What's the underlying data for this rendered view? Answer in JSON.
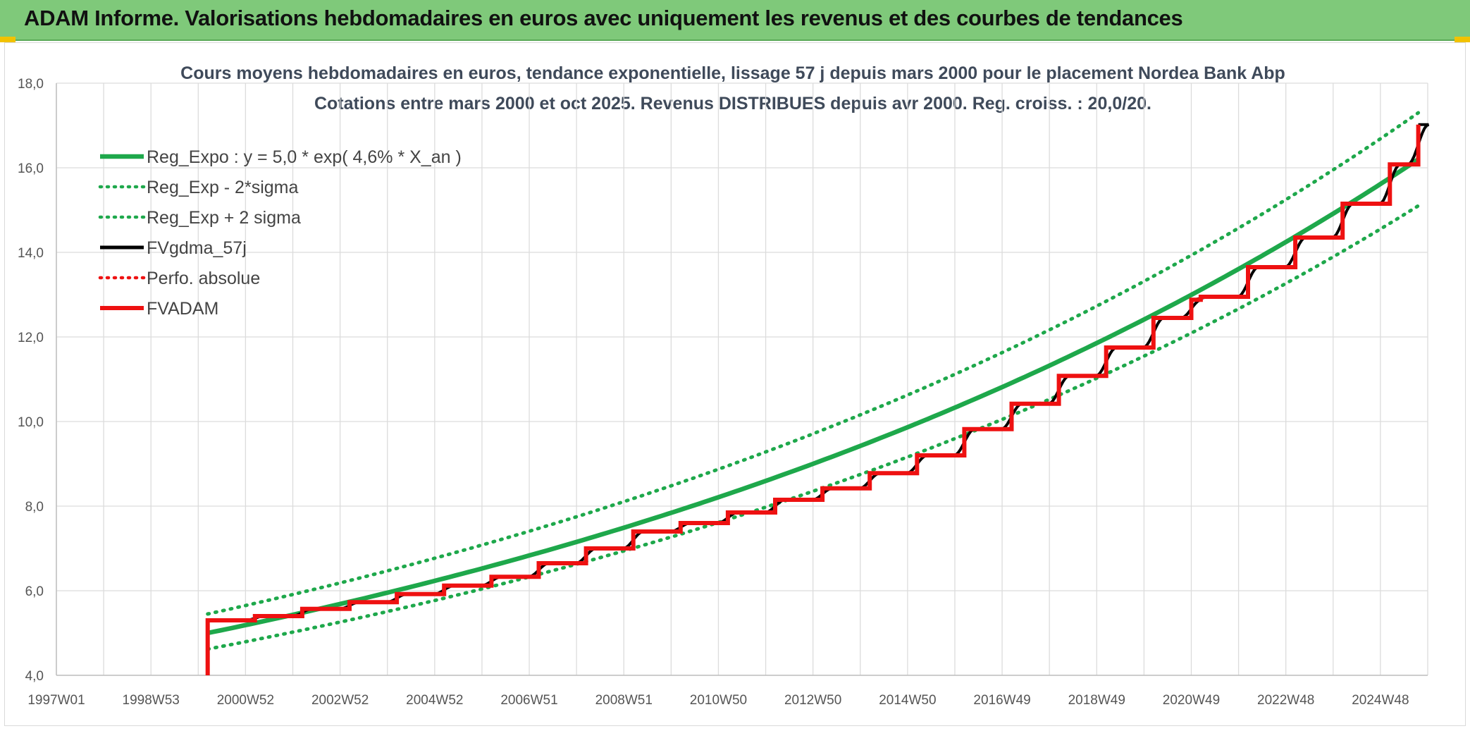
{
  "header": {
    "title": "ADAM Informe. Valorisations hebdomadaires en euros avec uniquement les revenus et des courbes de tendances"
  },
  "colors": {
    "header_bg": "#7fc97a",
    "trend": "#1ea84b",
    "fvgdma": "#000000",
    "fvadam": "#ee1111",
    "perfo": "#ee1111"
  },
  "chart_data": {
    "type": "line",
    "title": "Cours moyens hebdomadaires en euros, tendance exponentielle, lissage 57 j depuis mars 2000 pour le placement Nordea Bank Abp",
    "subtitle": "Cotations entre mars 2000 et oct 2025. Revenus DISTRIBUES depuis avr 2000. Reg. croiss. : 20,0/20.",
    "xlabel": "",
    "ylabel": "",
    "x_ticks": [
      "1997W01",
      "1998W53",
      "2000W52",
      "2002W52",
      "2004W52",
      "2006W51",
      "2008W51",
      "2010W50",
      "2012W50",
      "2014W50",
      "2016W49",
      "2018W49",
      "2020W49",
      "2022W48",
      "2024W48"
    ],
    "x_range": [
      1997.0,
      2026.0
    ],
    "y_ticks": [
      "4,0",
      "6,0",
      "8,0",
      "10,0",
      "12,0",
      "14,0",
      "16,0",
      "18,0"
    ],
    "ylim": [
      4.0,
      18.0
    ],
    "grid": true,
    "legend_position": "top-left",
    "legend": [
      {
        "label": "Reg_Expo : y = 5,0 * exp( 4,6% *  X_an )",
        "style": "solid",
        "color": "#1ea84b"
      },
      {
        "label": "Reg_Exp - 2*sigma",
        "style": "dotted",
        "color": "#1ea84b"
      },
      {
        "label": "Reg_Exp + 2 sigma",
        "style": "dotted",
        "color": "#1ea84b"
      },
      {
        "label": "FVgdma_57j",
        "style": "solid",
        "color": "#000000"
      },
      {
        "label": "Perfo. absolue",
        "style": "dotted",
        "color": "#ee1111"
      },
      {
        "label": "FVADAM",
        "style": "solid-thick",
        "color": "#ee1111"
      }
    ],
    "series": [
      {
        "name": "Reg_Expo : y = 5,0 * exp( 4,6% *  X_an )",
        "x": [
          2000.2,
          2005.0,
          2010.0,
          2015.0,
          2020.0,
          2025.8
        ],
        "values": [
          5.0,
          6.25,
          7.8,
          9.8,
          12.4,
          16.2
        ]
      },
      {
        "name": "Reg_Exp - 2*sigma",
        "x": [
          2000.2,
          2005.0,
          2010.0,
          2015.0,
          2020.0,
          2025.8
        ],
        "values": [
          4.62,
          5.78,
          7.25,
          9.1,
          11.45,
          15.1
        ]
      },
      {
        "name": "Reg_Exp + 2 sigma",
        "x": [
          2000.2,
          2005.0,
          2010.0,
          2015.0,
          2020.0,
          2025.8
        ],
        "values": [
          5.45,
          6.8,
          8.5,
          10.65,
          13.4,
          17.3
        ]
      },
      {
        "name": "FVADAM",
        "x": [
          2000.2,
          2000.2,
          2001.2,
          2002.2,
          2003.2,
          2004.2,
          2005.2,
          2006.2,
          2007.2,
          2008.2,
          2009.2,
          2010.2,
          2011.2,
          2012.2,
          2013.2,
          2014.2,
          2015.2,
          2016.2,
          2017.2,
          2018.2,
          2019.2,
          2020.2,
          2021.0,
          2021.2,
          2022.2,
          2023.2,
          2024.2,
          2025.2,
          2025.8
        ],
        "values": [
          4.0,
          5.3,
          5.4,
          5.57,
          5.73,
          5.92,
          6.12,
          6.33,
          6.65,
          7.0,
          7.4,
          7.6,
          7.85,
          8.15,
          8.42,
          8.78,
          9.2,
          9.82,
          10.42,
          11.08,
          11.75,
          12.45,
          12.88,
          12.95,
          13.65,
          14.35,
          15.15,
          16.08,
          17.02
        ]
      },
      {
        "name": "FVgdma_57j",
        "x": [
          2000.2,
          2025.8
        ],
        "values": [
          5.3,
          17.02
        ]
      }
    ]
  }
}
